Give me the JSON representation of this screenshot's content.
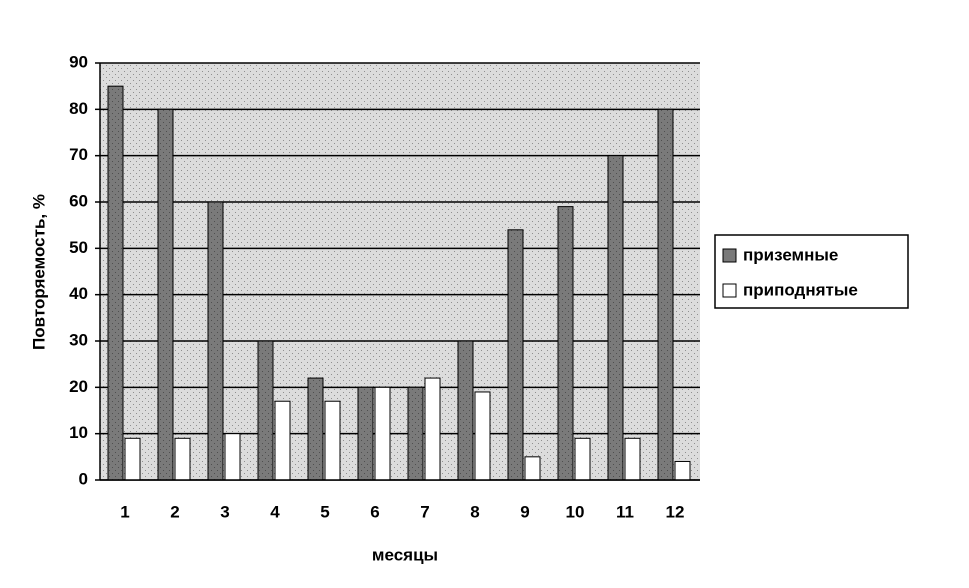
{
  "chart_data": {
    "type": "bar",
    "y_label": "Повторяемость, %",
    "x_label": "месяцы",
    "categories": [
      "1",
      "2",
      "3",
      "4",
      "5",
      "6",
      "7",
      "8",
      "9",
      "10",
      "11",
      "12"
    ],
    "series": [
      {
        "name": "приземные",
        "color": "#7a7a7a",
        "values": [
          85,
          80,
          60,
          30,
          22,
          20,
          20,
          30,
          54,
          59,
          70,
          80
        ]
      },
      {
        "name": "приподнятые",
        "color": "#ffffff",
        "values": [
          9,
          9,
          10,
          17,
          17,
          20,
          22,
          19,
          5,
          9,
          9,
          4
        ]
      }
    ],
    "ylim": [
      0,
      90
    ],
    "yticks": [
      0,
      10,
      20,
      30,
      40,
      50,
      60,
      70,
      80,
      90
    ],
    "grid": true,
    "legend": "right",
    "plot_background": "#dcdcdc"
  }
}
